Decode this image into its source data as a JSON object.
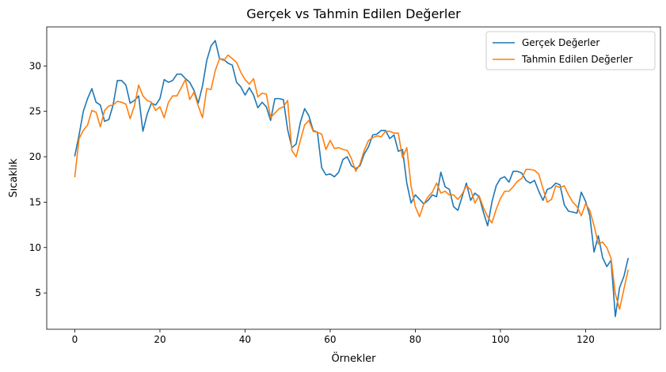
{
  "chart_data": {
    "type": "line",
    "title": "Gerçek vs Tahmin Edilen Değerler",
    "xlabel": "Örnekler",
    "ylabel": "Sıcaklık",
    "xlim": [
      -6.6,
      137.6
    ],
    "ylim": [
      1.0,
      34.3
    ],
    "xticks": [
      0,
      20,
      40,
      60,
      80,
      100,
      120
    ],
    "yticks": [
      5,
      10,
      15,
      20,
      25,
      30
    ],
    "grid": false,
    "legend_position": "top-right",
    "series": [
      {
        "name": "Gerçek Değerler",
        "color": "#1f77b4",
        "values": [
          20.1,
          22.4,
          25.0,
          26.4,
          27.5,
          26.0,
          25.7,
          23.9,
          24.1,
          25.7,
          28.4,
          28.4,
          27.9,
          25.9,
          26.2,
          26.7,
          22.8,
          24.7,
          25.9,
          25.7,
          26.4,
          28.5,
          28.2,
          28.4,
          29.1,
          29.1,
          28.6,
          28.2,
          27.3,
          25.9,
          27.8,
          30.6,
          32.2,
          32.8,
          30.8,
          30.7,
          30.3,
          30.1,
          28.2,
          27.7,
          26.8,
          27.6,
          26.8,
          25.4,
          26.0,
          25.5,
          24.0,
          26.4,
          26.4,
          26.3,
          23.0,
          21.0,
          21.4,
          23.8,
          25.3,
          24.5,
          22.9,
          22.7,
          18.8,
          18.0,
          18.1,
          17.8,
          18.3,
          19.7,
          20.0,
          19.0,
          18.7,
          19.0,
          20.3,
          21.1,
          22.4,
          22.5,
          22.9,
          22.9,
          22.0,
          22.4,
          20.6,
          20.8,
          17.1,
          14.9,
          15.8,
          15.3,
          14.8,
          15.2,
          15.8,
          15.6,
          18.3,
          16.7,
          16.4,
          14.5,
          14.1,
          15.6,
          17.1,
          15.2,
          16.0,
          15.6,
          13.9,
          12.4,
          15.0,
          16.8,
          17.6,
          17.8,
          17.2,
          18.4,
          18.4,
          18.2,
          17.4,
          17.1,
          17.4,
          16.2,
          15.2,
          16.4,
          16.6,
          17.1,
          16.9,
          14.7,
          14.0,
          13.9,
          13.8,
          16.1,
          15.1,
          13.5,
          9.5,
          11.3,
          8.9,
          7.9,
          8.6,
          2.4,
          5.6,
          6.8,
          8.8
        ]
      },
      {
        "name": "Tahmin Edilen Değerler",
        "color": "#ff7f0e",
        "values": [
          17.8,
          22.0,
          22.9,
          23.5,
          25.1,
          24.9,
          23.3,
          25.1,
          25.6,
          25.7,
          26.1,
          26.0,
          25.8,
          24.2,
          25.6,
          27.9,
          26.7,
          26.2,
          26.0,
          25.1,
          25.5,
          24.3,
          26.0,
          26.7,
          26.7,
          27.6,
          28.5,
          26.3,
          27.1,
          25.6,
          24.3,
          27.5,
          27.4,
          29.5,
          30.8,
          30.6,
          31.2,
          30.8,
          30.4,
          29.3,
          28.5,
          28.0,
          28.6,
          26.6,
          27.0,
          26.9,
          24.3,
          24.8,
          25.3,
          25.5,
          26.2,
          20.7,
          20.0,
          21.8,
          23.5,
          24.0,
          22.8,
          22.7,
          22.5,
          20.8,
          21.8,
          20.9,
          21.0,
          20.8,
          20.7,
          19.8,
          18.4,
          19.2,
          20.7,
          21.8,
          22.1,
          22.3,
          22.2,
          22.8,
          22.8,
          22.6,
          22.6,
          19.9,
          21.0,
          16.8,
          14.5,
          13.4,
          14.8,
          15.6,
          16.1,
          17.1,
          16.0,
          16.2,
          15.8,
          15.8,
          15.3,
          15.9,
          16.8,
          16.4,
          14.9,
          15.7,
          14.4,
          13.4,
          12.7,
          14.2,
          15.4,
          16.2,
          16.2,
          16.7,
          17.3,
          17.6,
          18.6,
          18.6,
          18.5,
          18.1,
          16.5,
          15.0,
          15.3,
          16.8,
          16.6,
          16.8,
          15.8,
          15.0,
          14.5,
          13.5,
          14.8,
          14.1,
          12.4,
          10.4,
          10.6,
          10.0,
          8.8,
          4.9,
          3.2,
          5.4,
          7.5
        ]
      }
    ]
  }
}
